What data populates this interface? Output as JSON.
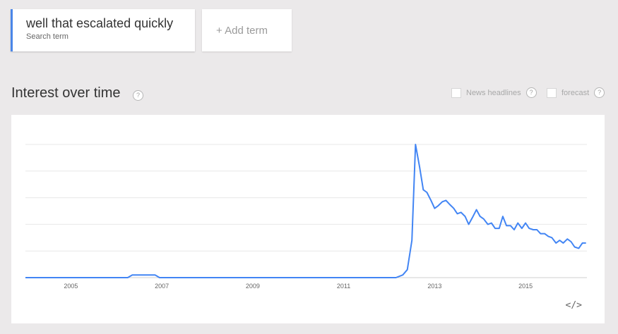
{
  "search": {
    "term": "well that escalated quickly",
    "term_sublabel": "Search term",
    "add_label": "+ Add term"
  },
  "section": {
    "title": "Interest over time",
    "help": "?"
  },
  "options": {
    "news_label": "News headlines",
    "forecast_label": "forecast",
    "help": "?"
  },
  "embed_label": "</>",
  "colors": {
    "accent": "#4a86e8",
    "line": "#4285f4",
    "grid": "#e8e8e8"
  },
  "chart_data": {
    "type": "line",
    "x_tick_labels": [
      "2005",
      "2007",
      "2009",
      "2011",
      "2013",
      "2015"
    ],
    "xlim": [
      2004.0,
      2016.35
    ],
    "ylim": [
      0,
      100
    ],
    "grid": true,
    "series": [
      {
        "x": [
          2004.0,
          2006.25,
          2006.35,
          2006.85,
          2006.95,
          2012.15,
          2012.3,
          2012.4,
          2012.5,
          2012.58,
          2012.67,
          2012.75,
          2012.83,
          2012.92,
          2013.0,
          2013.08,
          2013.17,
          2013.25,
          2013.33,
          2013.42,
          2013.5,
          2013.58,
          2013.67,
          2013.75,
          2013.83,
          2013.92,
          2014.0,
          2014.08,
          2014.17,
          2014.25,
          2014.33,
          2014.42,
          2014.5,
          2014.58,
          2014.67,
          2014.75,
          2014.83,
          2014.92,
          2015.0,
          2015.08,
          2015.17,
          2015.25,
          2015.33,
          2015.42,
          2015.5,
          2015.58,
          2015.67,
          2015.75,
          2015.83,
          2015.92,
          2016.0,
          2016.08,
          2016.17,
          2016.25,
          2016.33
        ],
        "y": [
          0,
          0,
          2,
          2,
          0,
          0,
          2,
          6,
          28,
          100,
          83,
          66,
          64,
          58,
          52,
          54,
          57,
          58,
          55,
          52,
          48,
          49,
          46,
          40,
          45,
          51,
          46,
          44,
          40,
          41,
          37,
          37,
          46,
          39,
          39,
          36,
          41,
          37,
          41,
          37,
          36,
          36,
          33,
          33,
          31,
          30,
          26,
          28,
          26,
          29,
          27,
          23,
          22,
          26,
          26
        ]
      }
    ]
  }
}
